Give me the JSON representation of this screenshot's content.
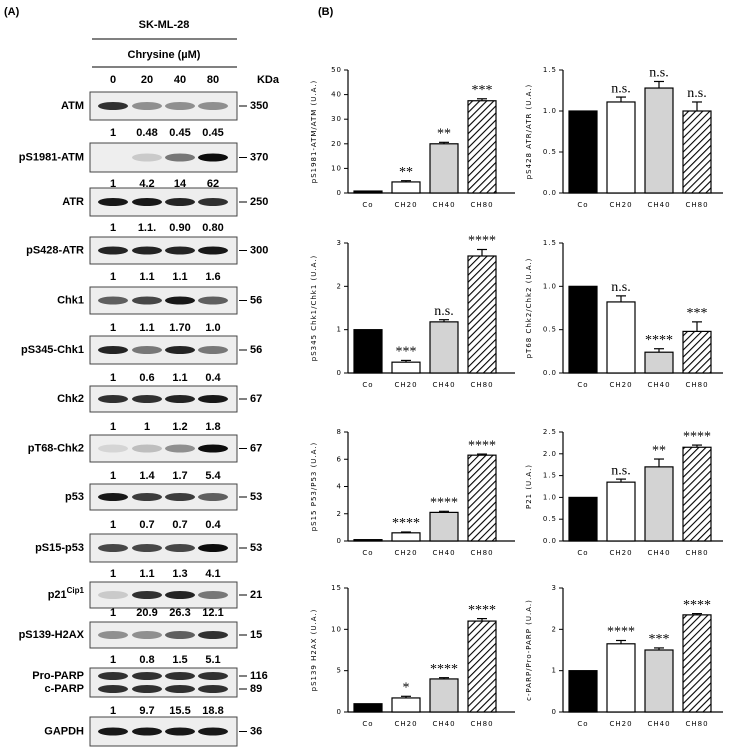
{
  "panel_a": {
    "label": "(A)",
    "cell_line": "SK-ML-28",
    "treatment": "Chrysine (µM)",
    "doses": [
      "0",
      "20",
      "40",
      "80"
    ],
    "kda_header": "KDa",
    "blots": [
      {
        "label": "ATM",
        "kda": "350",
        "quant": [
          "1",
          "0.48",
          "0.45",
          "0.45"
        ]
      },
      {
        "label": "pS1981-ATM",
        "kda": "370",
        "quant": [
          "1",
          "4.2",
          "14",
          "62"
        ]
      },
      {
        "label": "ATR",
        "kda": "250",
        "quant": [
          "1",
          "1.1.",
          "0.90",
          "0.80"
        ]
      },
      {
        "label": "pS428-ATR",
        "kda": "300",
        "quant": [
          "1",
          "1.1",
          "1.1",
          "1.6"
        ]
      },
      {
        "label": "Chk1",
        "kda": "56",
        "quant": [
          "1",
          "1.1",
          "1.70",
          "1.0"
        ]
      },
      {
        "label": "pS345-Chk1",
        "kda": "56",
        "quant": [
          "1",
          "0.6",
          "1.1",
          "0.4"
        ]
      },
      {
        "label": "Chk2",
        "kda": "67",
        "quant": [
          "1",
          "1",
          "1.2",
          "1.8"
        ]
      },
      {
        "label": "pT68-Chk2",
        "kda": "67",
        "quant": [
          "1",
          "1.4",
          "1.7",
          "5.4"
        ]
      },
      {
        "label": "p53",
        "kda": "53",
        "quant": [
          "1",
          "0.7",
          "0.7",
          "0.4"
        ]
      },
      {
        "label": "pS15-p53",
        "kda": "53",
        "quant": [
          "1",
          "1.1",
          "1.3",
          "4.1"
        ]
      },
      {
        "label": "p21",
        "sup": "Cip1",
        "kda": "21",
        "quant": [
          "1",
          "20.9",
          "26.3",
          "12.1"
        ]
      },
      {
        "label": "pS139-H2AX",
        "kda": "15",
        "quant": [
          "1",
          "0.8",
          "1.5",
          "5.1"
        ]
      },
      {
        "label": "Pro-PARP",
        "label2": "c-PARP",
        "kda": "116",
        "kda2": "89",
        "quant": [
          "1",
          "9.7",
          "15.5",
          "18.8"
        ]
      },
      {
        "label": "GAPDH",
        "kda": "36"
      }
    ]
  },
  "panel_b_label": "(B)",
  "chart_data": [
    {
      "type": "bar",
      "y_label": "pS1981-ATM/ATM (U.A.)",
      "categories": [
        "Co",
        "CH20",
        "CH40",
        "CH80"
      ],
      "values": [
        0.8,
        4.5,
        20,
        37.5
      ],
      "errors": [
        null,
        0.5,
        0.6,
        0.8
      ],
      "annotations": [
        null,
        "**",
        "**",
        "***"
      ],
      "colors": [
        "#000000",
        "#ffffff",
        "#d3d3d3",
        "#ffffff"
      ],
      "hatch": [
        false,
        false,
        false,
        true
      ],
      "ylim": [
        0,
        50
      ],
      "yticks": [
        0,
        10,
        20,
        30,
        40,
        50
      ]
    },
    {
      "type": "bar",
      "y_label": "pS428 ATR/ATR (U.A.)",
      "categories": [
        "Co",
        "CH20",
        "CH40",
        "CH80"
      ],
      "values": [
        1,
        1.11,
        1.28,
        1.0
      ],
      "errors": [
        null,
        0.06,
        0.08,
        0.11
      ],
      "annotations": [
        null,
        "n.s.",
        "n.s.",
        "n.s."
      ],
      "colors": [
        "#000000",
        "#ffffff",
        "#d3d3d3",
        "#ffffff"
      ],
      "hatch": [
        false,
        false,
        false,
        true
      ],
      "ylim": [
        0,
        1.5
      ],
      "yticks": [
        {
          "value": 0,
          "label": "0.0"
        },
        0.5,
        {
          "value": 1,
          "label": "1.0"
        },
        1.5
      ]
    },
    {
      "type": "bar",
      "y_label": "pS345 Chk1/Chk1 (U.A.)",
      "categories": [
        "Co",
        "CH20",
        "CH40",
        "CH80"
      ],
      "values": [
        1,
        0.25,
        1.18,
        2.7
      ],
      "errors": [
        null,
        0.04,
        0.05,
        0.15
      ],
      "annotations": [
        null,
        "***",
        "n.s.",
        "****"
      ],
      "colors": [
        "#000000",
        "#ffffff",
        "#d3d3d3",
        "#ffffff"
      ],
      "hatch": [
        false,
        false,
        false,
        true
      ],
      "ylim": [
        0,
        3
      ],
      "yticks": [
        0,
        1,
        2,
        3
      ]
    },
    {
      "type": "bar",
      "y_label": "pT68 Chk2/Chk2 (U.A.)",
      "categories": [
        "Co",
        "CH20",
        "CH40",
        "CH80"
      ],
      "values": [
        1,
        0.82,
        0.24,
        0.48
      ],
      "errors": [
        null,
        0.07,
        0.04,
        0.11
      ],
      "annotations": [
        null,
        "n.s.",
        "****",
        "***"
      ],
      "colors": [
        "#000000",
        "#ffffff",
        "#d3d3d3",
        "#ffffff"
      ],
      "hatch": [
        false,
        false,
        false,
        true
      ],
      "ylim": [
        0,
        1.5
      ],
      "yticks": [
        {
          "value": 0,
          "label": "0.0"
        },
        0.5,
        {
          "value": 1,
          "label": "1.0"
        },
        1.5
      ]
    },
    {
      "type": "bar",
      "y_label": "pS15 P53/P53 (U.A.)",
      "categories": [
        "Co",
        "CH20",
        "CH40",
        "CH80"
      ],
      "values": [
        0.1,
        0.6,
        2.1,
        6.3
      ],
      "errors": [
        null,
        0.06,
        0.08,
        0.08
      ],
      "annotations": [
        null,
        "****",
        "****",
        "****"
      ],
      "colors": [
        "#000000",
        "#ffffff",
        "#d3d3d3",
        "#ffffff"
      ],
      "hatch": [
        false,
        false,
        false,
        true
      ],
      "ylim": [
        0,
        8
      ],
      "yticks": [
        0,
        2,
        4,
        6,
        8
      ]
    },
    {
      "type": "bar",
      "y_label": "P21 (U.A.)",
      "categories": [
        "Co",
        "CH20",
        "CH40",
        "CH80"
      ],
      "values": [
        1,
        1.35,
        1.7,
        2.15
      ],
      "errors": [
        null,
        0.07,
        0.18,
        0.05
      ],
      "annotations": [
        null,
        "n.s.",
        "**",
        "****"
      ],
      "colors": [
        "#000000",
        "#ffffff",
        "#d3d3d3",
        "#ffffff"
      ],
      "hatch": [
        false,
        false,
        false,
        true
      ],
      "ylim": [
        0,
        2.5
      ],
      "yticks": [
        {
          "value": 0,
          "label": "0.0"
        },
        0.5,
        {
          "value": 1,
          "label": "1.0"
        },
        1.5,
        {
          "value": 2,
          "label": "2.0"
        },
        2.5
      ]
    },
    {
      "type": "bar",
      "y_label": "pS139 H2AX (U.A.)",
      "categories": [
        "Co",
        "CH20",
        "CH40",
        "CH80"
      ],
      "values": [
        1,
        1.7,
        4,
        11
      ],
      "errors": [
        null,
        0.2,
        0.15,
        0.3
      ],
      "annotations": [
        null,
        "*",
        "****",
        "****"
      ],
      "colors": [
        "#000000",
        "#ffffff",
        "#d3d3d3",
        "#ffffff"
      ],
      "hatch": [
        false,
        false,
        false,
        true
      ],
      "ylim": [
        0,
        15
      ],
      "yticks": [
        0,
        5,
        10,
        15
      ]
    },
    {
      "type": "bar",
      "y_label": "c-PARP/Pro-PARP (U.A.)",
      "categories": [
        "Co",
        "CH20",
        "CH40",
        "CH80"
      ],
      "values": [
        1,
        1.65,
        1.5,
        2.35
      ],
      "errors": [
        null,
        0.08,
        0.05,
        0.03
      ],
      "annotations": [
        null,
        "****",
        "***",
        "****"
      ],
      "colors": [
        "#000000",
        "#ffffff",
        "#d3d3d3",
        "#ffffff"
      ],
      "hatch": [
        false,
        false,
        false,
        true
      ],
      "ylim": [
        0,
        3
      ],
      "yticks": [
        0,
        1,
        2,
        3
      ]
    }
  ]
}
